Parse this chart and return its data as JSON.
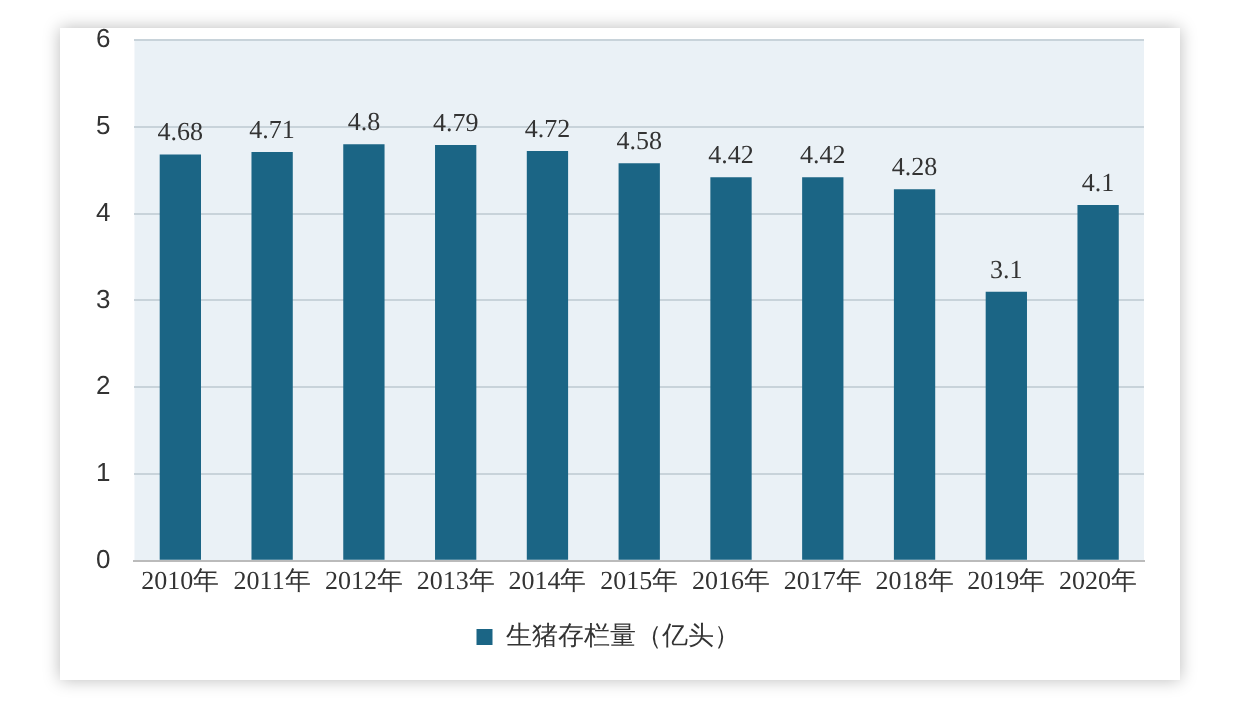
{
  "chart_data": {
    "type": "bar",
    "categories": [
      "2010年",
      "2011年",
      "2012年",
      "2013年",
      "2014年",
      "2015年",
      "2016年",
      "2017年",
      "2018年",
      "2019年",
      "2020年"
    ],
    "series": [
      {
        "name": "生猪存栏量（亿头）",
        "color": "#1b6585",
        "values": [
          4.68,
          4.71,
          4.8,
          4.79,
          4.72,
          4.58,
          4.42,
          4.42,
          4.28,
          3.1,
          4.1
        ]
      }
    ],
    "ylim": [
      0,
      6
    ],
    "yticks": [
      0,
      1,
      2,
      3,
      4,
      5,
      6
    ],
    "grid": "y",
    "legend": "bottom",
    "data_labels": true
  }
}
